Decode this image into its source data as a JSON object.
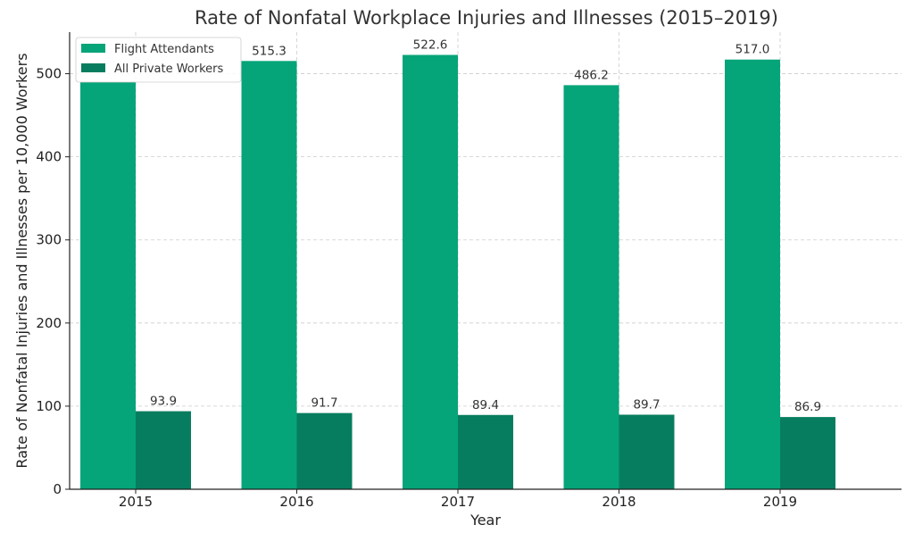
{
  "chart_data": {
    "type": "bar",
    "title": "Rate of Nonfatal Workplace Injuries and Illnesses (2015–2019)",
    "xlabel": "Year",
    "ylabel": "Rate of Nonfatal Injuries and Illnesses per 10,000 Workers",
    "categories": [
      "2015",
      "2016",
      "2017",
      "2018",
      "2019"
    ],
    "series": [
      {
        "name": "Flight Attendants",
        "values": [
          490.0,
          515.3,
          522.6,
          486.2,
          517.0
        ],
        "color": "#06a479",
        "labels": [
          "",
          "515.3",
          "522.6",
          "486.2",
          "517.0"
        ]
      },
      {
        "name": "All Private Workers",
        "values": [
          93.9,
          91.7,
          89.4,
          89.7,
          86.9
        ],
        "color": "#077d5f",
        "labels": [
          "93.9",
          "91.7",
          "89.4",
          "89.7",
          "86.9"
        ]
      }
    ],
    "ylim": [
      0,
      550
    ],
    "yticks": [
      0,
      100,
      200,
      300,
      400,
      500
    ],
    "grid": true,
    "legend_position": "top-left"
  }
}
